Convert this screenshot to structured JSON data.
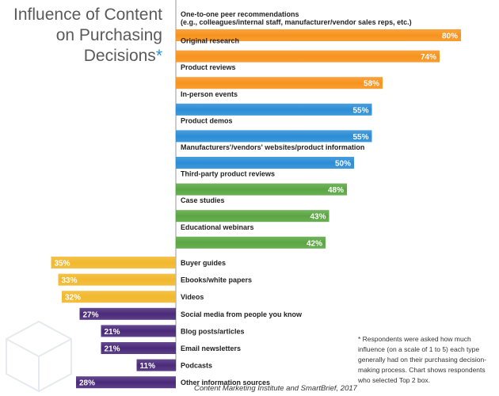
{
  "title": {
    "line1": "Influence of Content",
    "line2": "on Purchasing",
    "line3": "Decisions",
    "asterisk": "*"
  },
  "footnote": "* Respondents were asked how much influence (on a scale of 1 to 5) each type generally had on their purchasing decision-making process. Chart shows respondents who selected Top 2 box.",
  "source": "Content Marketing Institute and SmartBrief, 2017",
  "colors": {
    "orange": "#f7931e",
    "blue": "#2b8dd6",
    "green": "#5aa642",
    "yellow": "#f2b82d",
    "purple": "#4a2a7a",
    "axis": "#999999"
  },
  "chart_data": {
    "type": "bar",
    "orientation": "horizontal",
    "unit": "%",
    "xlim": [
      0,
      100
    ],
    "top_group": [
      {
        "label": "One-to-one peer recommendations",
        "sublabel": "(e.g., colleagues/internal staff, manufacturer/vendor sales reps, etc.)",
        "value": 80,
        "value_label": "80%",
        "color": "orange"
      },
      {
        "label": "Original research",
        "value": 74,
        "value_label": "74%",
        "color": "orange"
      },
      {
        "label": "Product reviews",
        "value": 58,
        "value_label": "58%",
        "color": "orange"
      },
      {
        "label": "In-person events",
        "value": 55,
        "value_label": "55%",
        "color": "blue"
      },
      {
        "label": "Product demos",
        "value": 55,
        "value_label": "55%",
        "color": "blue"
      },
      {
        "label": "Manufacturers'/vendors' websites/product information",
        "value": 50,
        "value_label": "50%",
        "color": "blue"
      },
      {
        "label": "Third-party product reviews",
        "value": 48,
        "value_label": "48%",
        "color": "green"
      },
      {
        "label": "Case studies",
        "value": 43,
        "value_label": "43%",
        "color": "green"
      },
      {
        "label": "Educational webinars",
        "value": 42,
        "value_label": "42%",
        "color": "green"
      }
    ],
    "bottom_group": [
      {
        "label": "Buyer guides",
        "value": 35,
        "value_label": "35%",
        "color": "yellow"
      },
      {
        "label": "Ebooks/white papers",
        "value": 33,
        "value_label": "33%",
        "color": "yellow"
      },
      {
        "label": "Videos",
        "value": 32,
        "value_label": "32%",
        "color": "yellow"
      },
      {
        "label": "Social media from people you know",
        "value": 27,
        "value_label": "27%",
        "color": "purple"
      },
      {
        "label": "Blog posts/articles",
        "value": 21,
        "value_label": "21%",
        "color": "purple"
      },
      {
        "label": "Email newsletters",
        "value": 21,
        "value_label": "21%",
        "color": "purple"
      },
      {
        "label": "Podcasts",
        "value": 11,
        "value_label": "11%",
        "color": "purple"
      },
      {
        "label": "Other information sources",
        "value": 28,
        "value_label": "28%",
        "color": "purple"
      }
    ]
  }
}
